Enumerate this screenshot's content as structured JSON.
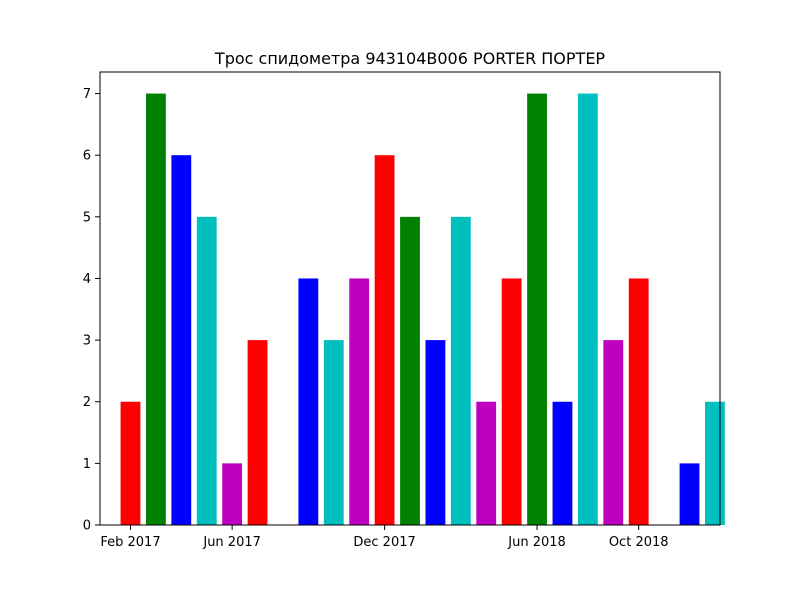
{
  "chart_data": {
    "type": "bar",
    "title": "Трос спидометра 943104B006 PORTER ПОРТЕР",
    "xlabel": "",
    "ylabel": "",
    "x_tick_labels": [
      {
        "label": "Feb 2017",
        "month_index": 1
      },
      {
        "label": "Jun 2017",
        "month_index": 5
      },
      {
        "label": "Dec 2017",
        "month_index": 11
      },
      {
        "label": "Jun 2018",
        "month_index": 17
      },
      {
        "label": "Oct 2018",
        "month_index": 21
      }
    ],
    "y_ticks": [
      0,
      1,
      2,
      3,
      4,
      5,
      6,
      7
    ],
    "ylim": [
      0,
      7.35
    ],
    "xlim_months": [
      -0.2,
      24.2
    ],
    "grid": false,
    "bars": [
      {
        "month": "Feb 2017",
        "month_index": 1,
        "value": 2,
        "color": "#ff0000"
      },
      {
        "month": "Mar 2017",
        "month_index": 2,
        "value": 7,
        "color": "#008000"
      },
      {
        "month": "Apr 2017",
        "month_index": 3,
        "value": 6,
        "color": "#0000ff"
      },
      {
        "month": "May 2017",
        "month_index": 4,
        "value": 5,
        "color": "#00bfbf"
      },
      {
        "month": "Jun 2017",
        "month_index": 5,
        "value": 1,
        "color": "#bf00bf"
      },
      {
        "month": "Jul 2017",
        "month_index": 6,
        "value": 3,
        "color": "#ff0000"
      },
      {
        "month": "Sep 2017",
        "month_index": 8,
        "value": 4,
        "color": "#0000ff"
      },
      {
        "month": "Oct 2017",
        "month_index": 9,
        "value": 3,
        "color": "#00bfbf"
      },
      {
        "month": "Nov 2017",
        "month_index": 10,
        "value": 4,
        "color": "#bf00bf"
      },
      {
        "month": "Dec 2017",
        "month_index": 11,
        "value": 6,
        "color": "#ff0000"
      },
      {
        "month": "Jan 2018",
        "month_index": 12,
        "value": 5,
        "color": "#008000"
      },
      {
        "month": "Feb 2018",
        "month_index": 13,
        "value": 3,
        "color": "#0000ff"
      },
      {
        "month": "Mar 2018",
        "month_index": 14,
        "value": 5,
        "color": "#00bfbf"
      },
      {
        "month": "Apr 2018",
        "month_index": 15,
        "value": 2,
        "color": "#bf00bf"
      },
      {
        "month": "May 2018",
        "month_index": 16,
        "value": 4,
        "color": "#ff0000"
      },
      {
        "month": "Jun 2018",
        "month_index": 17,
        "value": 7,
        "color": "#008000"
      },
      {
        "month": "Jul 2018",
        "month_index": 18,
        "value": 2,
        "color": "#0000ff"
      },
      {
        "month": "Aug 2018",
        "month_index": 19,
        "value": 7,
        "color": "#00bfbf"
      },
      {
        "month": "Sep 2018",
        "month_index": 20,
        "value": 3,
        "color": "#bf00bf"
      },
      {
        "month": "Oct 2018",
        "month_index": 21,
        "value": 4,
        "color": "#ff0000"
      },
      {
        "month": "Dec 2018",
        "month_index": 23,
        "value": 1,
        "color": "#0000ff"
      },
      {
        "month": "Jan 2019",
        "month_index": 24,
        "value": 2,
        "color": "#00bfbf"
      }
    ]
  }
}
